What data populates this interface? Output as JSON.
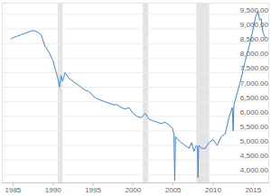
{
  "chart_data": {
    "type": "line",
    "color": "#3f86d2",
    "grid": true,
    "xlim": [
      1983.6,
      2017
    ],
    "xticks": [
      1985,
      1990,
      1995,
      2000,
      2005,
      2010,
      2015
    ],
    "ylim": [
      3700,
      9900
    ],
    "yticks": [
      {
        "value": 4000,
        "label": "4,000.00"
      },
      {
        "value": 4500,
        "label": "4,500.00"
      },
      {
        "value": 5000,
        "label": "5,000.00"
      },
      {
        "value": 5500,
        "label": "5,500.00"
      },
      {
        "value": 6000,
        "label": "6,000.00"
      },
      {
        "value": 6500,
        "label": "6,500.00"
      },
      {
        "value": 7000,
        "label": "7,000.00"
      },
      {
        "value": 7500,
        "label": "7,500.00"
      },
      {
        "value": 8000,
        "label": "8,000.00"
      },
      {
        "value": 8500,
        "label": "8,500.00"
      },
      {
        "value": 9000,
        "label": "9,000.00"
      },
      {
        "value": 9500,
        "label": "9,500.00"
      }
    ],
    "bands": [
      [
        1990.6,
        1991.2
      ],
      [
        2001.2,
        2001.9
      ],
      [
        2007.9,
        2009.5
      ]
    ],
    "x": [
      1984.7,
      1985,
      1985.5,
      1986,
      1986.5,
      1987,
      1987.5,
      1988,
      1988.5,
      1989,
      1989.5,
      1990,
      1990.3,
      1990.6,
      1990.8,
      1991,
      1991.2,
      1991.5,
      1992,
      1992.5,
      1993,
      1993.5,
      1994,
      1994.5,
      1995,
      1995.5,
      1996,
      1996.5,
      1997,
      1997.5,
      1998,
      1998.5,
      1999,
      1999.5,
      2000,
      2000.5,
      2001,
      2001.5,
      2002,
      2002.5,
      2003,
      2003.5,
      2004,
      2004.5,
      2004.9,
      2005.1,
      2005.2,
      2005.3,
      2005.6,
      2006,
      2006.5,
      2007,
      2007.3,
      2007.6,
      2007.9,
      2008.05,
      2008.1,
      2008.2,
      2008.6,
      2009,
      2009.5,
      2010,
      2010.5,
      2011,
      2011.5,
      2012,
      2012.4,
      2012.5,
      2012.6,
      2013,
      2013.5,
      2014,
      2014.5,
      2015,
      2015.3,
      2015.6,
      2015.8,
      2016,
      2016.2,
      2016.5
    ],
    "values": [
      8650,
      8700,
      8750,
      8800,
      8850,
      8900,
      8950,
      8900,
      8800,
      8400,
      8200,
      7900,
      7600,
      7300,
      7000,
      7400,
      7200,
      7500,
      7300,
      7200,
      7100,
      7000,
      6900,
      6850,
      6700,
      6600,
      6550,
      6500,
      6450,
      6400,
      6400,
      6300,
      6250,
      6300,
      6100,
      6000,
      5950,
      6100,
      5900,
      5850,
      5800,
      5750,
      5800,
      5700,
      5600,
      5400,
      3800,
      5300,
      5200,
      5100,
      5000,
      4900,
      5100,
      4800,
      5000,
      4950,
      3900,
      5000,
      4900,
      4900,
      5100,
      5200,
      5000,
      5300,
      5400,
      6000,
      6300,
      5500,
      6400,
      6800,
      7300,
      7900,
      8400,
      9000,
      9400,
      9600,
      9300,
      9350,
      8900,
      8700
    ]
  }
}
